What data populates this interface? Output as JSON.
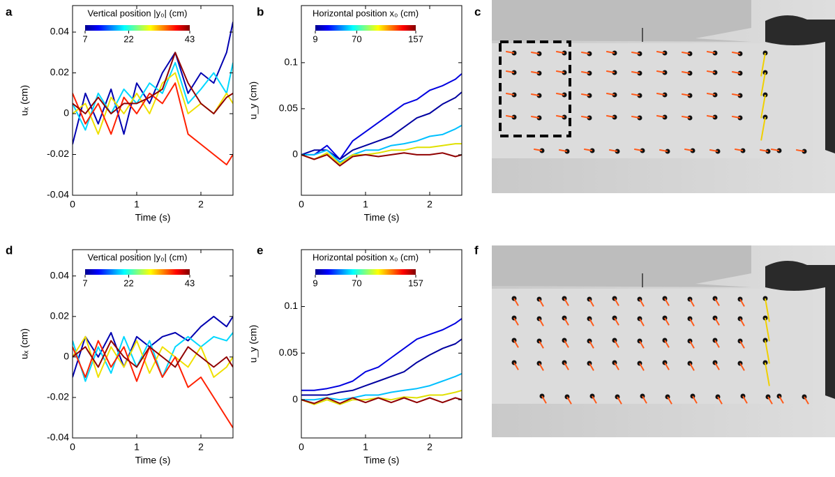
{
  "chart_data": [
    {
      "type": "line",
      "panel": "a",
      "xlabel": "Time (s)",
      "ylabel": "uₓ (cm)",
      "colorbar": {
        "label": "Vertical position |y₀| (cm)",
        "lim": [
          7,
          43
        ],
        "ticks": [
          7,
          22,
          43
        ]
      },
      "x": [
        0,
        0.2,
        0.4,
        0.6,
        0.8,
        1.0,
        1.2,
        1.4,
        1.6,
        1.8,
        2.0,
        2.2,
        2.4,
        2.5
      ],
      "xlim": [
        0,
        2.5
      ],
      "xticks": [
        0,
        1,
        2
      ],
      "ylim": [
        -0.04,
        0.053
      ],
      "yticks": [
        -0.04,
        -0.02,
        0,
        0.02,
        0.04
      ],
      "series": [
        {
          "color": "#0000b0",
          "values": [
            -0.015,
            0.01,
            -0.005,
            0.012,
            -0.01,
            0.015,
            0.005,
            0.02,
            0.03,
            0.01,
            0.02,
            0.015,
            0.03,
            0.045
          ]
        },
        {
          "color": "#00d8ff",
          "values": [
            0.005,
            -0.008,
            0.01,
            0.0,
            0.012,
            0.005,
            0.015,
            0.01,
            0.025,
            0.005,
            0.012,
            0.02,
            0.01,
            0.025
          ]
        },
        {
          "color": "#f0e000",
          "values": [
            0.0,
            0.005,
            -0.01,
            0.008,
            0.0,
            0.01,
            0.0,
            0.015,
            0.02,
            0.0,
            0.005,
            0.0,
            0.01,
            0.005
          ]
        },
        {
          "color": "#ff2000",
          "values": [
            0.01,
            -0.005,
            0.005,
            -0.01,
            0.008,
            0.0,
            0.01,
            0.005,
            0.015,
            -0.01,
            -0.015,
            -0.02,
            -0.025,
            -0.02
          ]
        },
        {
          "color": "#900000",
          "values": [
            0.005,
            0.0,
            0.008,
            0.0,
            0.005,
            0.005,
            0.008,
            0.012,
            0.03,
            0.015,
            0.005,
            0.0,
            0.008,
            0.01
          ]
        }
      ]
    },
    {
      "type": "line",
      "panel": "b",
      "xlabel": "Time (s)",
      "ylabel": "u_y (cm)",
      "colorbar": {
        "label": "Horizontal position x₀ (cm)",
        "lim": [
          9,
          157
        ],
        "ticks": [
          9,
          70,
          157
        ]
      },
      "x": [
        0,
        0.2,
        0.4,
        0.6,
        0.8,
        1.0,
        1.2,
        1.4,
        1.6,
        1.8,
        2.0,
        2.2,
        2.4,
        2.5
      ],
      "xlim": [
        0,
        2.5
      ],
      "xticks": [
        0,
        1,
        2
      ],
      "ylim": [
        -0.044,
        0.162
      ],
      "yticks": [
        0,
        0.05,
        0.1
      ],
      "series": [
        {
          "color": "#0000e0",
          "values": [
            0,
            0,
            0.01,
            -0.005,
            0.015,
            0.025,
            0.035,
            0.045,
            0.055,
            0.06,
            0.07,
            0.075,
            0.082,
            0.088
          ]
        },
        {
          "color": "#0000a0",
          "values": [
            0,
            0.005,
            0.005,
            -0.005,
            0.005,
            0.01,
            0.015,
            0.02,
            0.03,
            0.04,
            0.045,
            0.055,
            0.062,
            0.068
          ]
        },
        {
          "color": "#00c0ff",
          "values": [
            0,
            0,
            0.005,
            -0.008,
            0,
            0.005,
            0.005,
            0.01,
            0.012,
            0.015,
            0.02,
            0.022,
            0.028,
            0.032
          ]
        },
        {
          "color": "#e0e000",
          "values": [
            0,
            -0.005,
            0.002,
            -0.01,
            0,
            0,
            0.002,
            0.005,
            0.005,
            0.008,
            0.008,
            0.01,
            0.012,
            0.012
          ]
        },
        {
          "color": "#900000",
          "values": [
            0,
            -0.005,
            0,
            -0.012,
            -0.002,
            0,
            -0.002,
            0,
            0.002,
            0,
            0,
            0.002,
            -0.002,
            0
          ]
        }
      ]
    },
    {
      "type": "line",
      "panel": "d",
      "xlabel": "Time (s)",
      "ylabel": "uₓ (cm)",
      "colorbar": {
        "label": "Vertical position |y₀| (cm)",
        "lim": [
          7,
          43
        ],
        "ticks": [
          7,
          22,
          43
        ]
      },
      "x": [
        0,
        0.2,
        0.4,
        0.6,
        0.8,
        1.0,
        1.2,
        1.4,
        1.6,
        1.8,
        2.0,
        2.2,
        2.4,
        2.5
      ],
      "xlim": [
        0,
        2.5
      ],
      "xticks": [
        0,
        1,
        2
      ],
      "ylim": [
        -0.04,
        0.053
      ],
      "yticks": [
        -0.04,
        -0.02,
        0,
        0.02,
        0.04
      ],
      "series": [
        {
          "color": "#0000b0",
          "values": [
            -0.01,
            0.01,
            0.0,
            0.012,
            -0.005,
            0.01,
            0.005,
            0.01,
            0.012,
            0.008,
            0.015,
            0.02,
            0.015,
            0.02
          ]
        },
        {
          "color": "#00d8ff",
          "values": [
            0.008,
            -0.012,
            0.005,
            -0.008,
            0.01,
            -0.005,
            0.008,
            -0.01,
            0.005,
            0.01,
            0.005,
            0.01,
            0.008,
            0.012
          ]
        },
        {
          "color": "#f0e000",
          "values": [
            0,
            0.01,
            -0.01,
            0.005,
            -0.005,
            0.008,
            -0.008,
            0.005,
            0,
            -0.005,
            0.005,
            -0.01,
            -0.005,
            0
          ]
        },
        {
          "color": "#ff2000",
          "values": [
            0.005,
            -0.01,
            0.008,
            -0.005,
            0.005,
            -0.012,
            0.005,
            -0.01,
            0,
            -0.015,
            -0.01,
            -0.02,
            -0.03,
            -0.035
          ]
        },
        {
          "color": "#900000",
          "values": [
            0,
            0.005,
            -0.005,
            0.008,
            0,
            -0.005,
            0.005,
            0,
            -0.005,
            0.005,
            0,
            -0.005,
            0,
            -0.005
          ]
        }
      ]
    },
    {
      "type": "line",
      "panel": "e",
      "xlabel": "Time (s)",
      "ylabel": "u_y (cm)",
      "colorbar": {
        "label": "Horizontal position x₀ (cm)",
        "lim": [
          9,
          157
        ],
        "ticks": [
          9,
          70,
          157
        ]
      },
      "x": [
        0,
        0.2,
        0.4,
        0.6,
        0.8,
        1.0,
        1.2,
        1.4,
        1.6,
        1.8,
        2.0,
        2.2,
        2.4,
        2.5
      ],
      "xlim": [
        0,
        2.5
      ],
      "xticks": [
        0,
        1,
        2
      ],
      "ylim": [
        -0.041,
        0.161
      ],
      "yticks": [
        0,
        0.05,
        0.1
      ],
      "series": [
        {
          "color": "#0000e0",
          "values": [
            0.01,
            0.01,
            0.012,
            0.015,
            0.02,
            0.03,
            0.035,
            0.045,
            0.055,
            0.065,
            0.07,
            0.075,
            0.082,
            0.087
          ]
        },
        {
          "color": "#0000a0",
          "values": [
            0.005,
            0.005,
            0.005,
            0.008,
            0.01,
            0.015,
            0.02,
            0.025,
            0.03,
            0.04,
            0.048,
            0.055,
            0.06,
            0.065
          ]
        },
        {
          "color": "#00c0ff",
          "values": [
            0,
            0,
            0.002,
            0,
            0.002,
            0.005,
            0.005,
            0.008,
            0.01,
            0.012,
            0.015,
            0.02,
            0.025,
            0.028
          ]
        },
        {
          "color": "#e0e000",
          "values": [
            0,
            -0.005,
            0,
            -0.005,
            0,
            0,
            0.002,
            0,
            0.003,
            0.002,
            0.005,
            0.005,
            0.008,
            0.01
          ]
        },
        {
          "color": "#900000",
          "values": [
            0,
            -0.004,
            0.002,
            -0.004,
            0.002,
            -0.003,
            0.002,
            -0.003,
            0.002,
            -0.003,
            0.002,
            -0.003,
            0.002,
            0
          ]
        }
      ]
    }
  ],
  "photos": [
    {
      "panel": "c"
    },
    {
      "panel": "f"
    }
  ]
}
